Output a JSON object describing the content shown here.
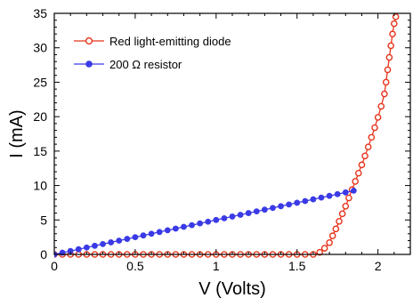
{
  "chart_data": {
    "type": "scatter",
    "xlabel": "V (Volts)",
    "ylabel": "I (mA)",
    "xlim": [
      0,
      2.2
    ],
    "ylim": [
      0,
      35
    ],
    "xticks": [
      {
        "value": 0,
        "label": "0"
      },
      {
        "value": 0.5,
        "label": "0.5"
      },
      {
        "value": 1,
        "label": "1"
      },
      {
        "value": 1.5,
        "label": "1.5"
      },
      {
        "value": 2,
        "label": "2"
      }
    ],
    "yticks": [
      {
        "value": 0,
        "label": "0"
      },
      {
        "value": 5,
        "label": "5"
      },
      {
        "value": 10,
        "label": "10"
      },
      {
        "value": 15,
        "label": "15"
      },
      {
        "value": 20,
        "label": "20"
      },
      {
        "value": 25,
        "label": "25"
      },
      {
        "value": 30,
        "label": "30"
      },
      {
        "value": 35,
        "label": "35"
      }
    ],
    "legend_position": "top-left",
    "grid": false,
    "series": [
      {
        "name": "Red light-emitting diode",
        "color": "#e8341c",
        "marker": "open-circle",
        "points": [
          [
            0.0,
            0.0
          ],
          [
            0.05,
            0.0
          ],
          [
            0.1,
            0.0
          ],
          [
            0.15,
            0.0
          ],
          [
            0.2,
            0.0
          ],
          [
            0.25,
            0.0
          ],
          [
            0.3,
            0.0
          ],
          [
            0.35,
            0.0
          ],
          [
            0.4,
            0.0
          ],
          [
            0.45,
            0.0
          ],
          [
            0.5,
            0.0
          ],
          [
            0.55,
            0.0
          ],
          [
            0.6,
            0.0
          ],
          [
            0.65,
            0.0
          ],
          [
            0.7,
            0.0
          ],
          [
            0.75,
            0.0
          ],
          [
            0.8,
            0.0
          ],
          [
            0.85,
            0.0
          ],
          [
            0.9,
            0.0
          ],
          [
            0.95,
            0.0
          ],
          [
            1.0,
            0.0
          ],
          [
            1.05,
            0.0
          ],
          [
            1.1,
            0.0
          ],
          [
            1.15,
            0.0
          ],
          [
            1.2,
            0.0
          ],
          [
            1.25,
            0.0
          ],
          [
            1.3,
            0.0
          ],
          [
            1.35,
            0.0
          ],
          [
            1.4,
            0.0
          ],
          [
            1.45,
            0.0
          ],
          [
            1.5,
            0.0
          ],
          [
            1.55,
            0.0
          ],
          [
            1.6,
            0.0
          ],
          [
            1.64,
            0.3
          ],
          [
            1.67,
            0.9
          ],
          [
            1.7,
            1.7
          ],
          [
            1.72,
            2.7
          ],
          [
            1.74,
            3.7
          ],
          [
            1.76,
            4.8
          ],
          [
            1.78,
            5.9
          ],
          [
            1.8,
            7.0
          ],
          [
            1.82,
            8.2
          ],
          [
            1.84,
            9.4
          ],
          [
            1.86,
            10.6
          ],
          [
            1.88,
            11.8
          ],
          [
            1.9,
            13.0
          ],
          [
            1.92,
            14.3
          ],
          [
            1.94,
            15.6
          ],
          [
            1.96,
            17.0
          ],
          [
            1.98,
            18.4
          ],
          [
            2.0,
            19.9
          ],
          [
            2.02,
            21.5
          ],
          [
            2.04,
            23.3
          ],
          [
            2.05,
            25.0
          ],
          [
            2.06,
            26.8
          ],
          [
            2.07,
            28.6
          ],
          [
            2.08,
            30.3
          ],
          [
            2.09,
            32.0
          ],
          [
            2.1,
            33.5
          ],
          [
            2.11,
            34.5
          ]
        ]
      },
      {
        "name": "200 Ω resistor",
        "color": "#3a3ae6",
        "marker": "filled-circle",
        "points": [
          [
            0.0,
            0.0
          ],
          [
            0.05,
            0.25
          ],
          [
            0.1,
            0.5
          ],
          [
            0.15,
            0.75
          ],
          [
            0.2,
            1.0
          ],
          [
            0.25,
            1.25
          ],
          [
            0.3,
            1.5
          ],
          [
            0.35,
            1.75
          ],
          [
            0.4,
            2.0
          ],
          [
            0.45,
            2.25
          ],
          [
            0.5,
            2.5
          ],
          [
            0.55,
            2.75
          ],
          [
            0.6,
            3.0
          ],
          [
            0.65,
            3.25
          ],
          [
            0.7,
            3.5
          ],
          [
            0.75,
            3.75
          ],
          [
            0.8,
            4.0
          ],
          [
            0.85,
            4.25
          ],
          [
            0.9,
            4.5
          ],
          [
            0.95,
            4.75
          ],
          [
            1.0,
            5.0
          ],
          [
            1.05,
            5.25
          ],
          [
            1.1,
            5.5
          ],
          [
            1.15,
            5.75
          ],
          [
            1.2,
            6.0
          ],
          [
            1.25,
            6.25
          ],
          [
            1.3,
            6.5
          ],
          [
            1.35,
            6.75
          ],
          [
            1.4,
            7.0
          ],
          [
            1.45,
            7.25
          ],
          [
            1.5,
            7.5
          ],
          [
            1.55,
            7.75
          ],
          [
            1.6,
            8.0
          ],
          [
            1.65,
            8.25
          ],
          [
            1.7,
            8.5
          ],
          [
            1.75,
            8.75
          ],
          [
            1.8,
            9.0
          ],
          [
            1.85,
            9.25
          ]
        ]
      }
    ]
  }
}
